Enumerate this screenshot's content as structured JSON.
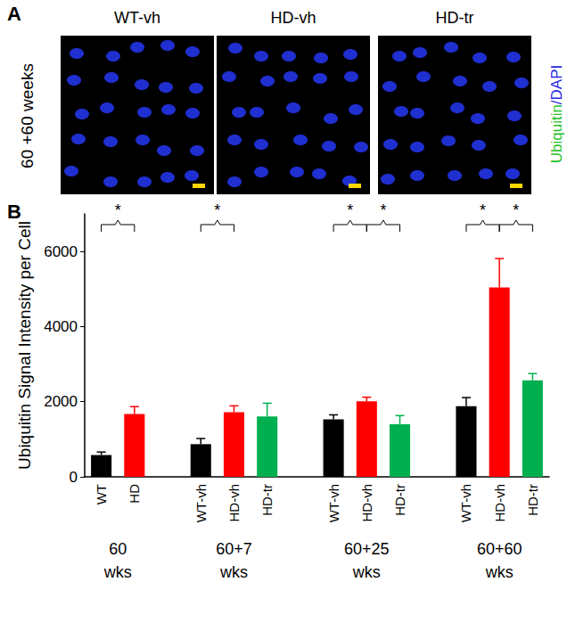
{
  "panel_a": {
    "label": "A",
    "row_label": "60 +60 weeks",
    "image_titles": [
      "WT-vh",
      "HD-vh",
      "HD-tr"
    ],
    "channel_labels": [
      {
        "text": "Ubiquitin",
        "color": "#1fbf1f"
      },
      {
        "text": "/DAPI",
        "color": "#2a2ae0"
      }
    ]
  },
  "panel_b_label": "B",
  "chart_data": {
    "type": "bar",
    "y_label": "Ubiquitin Signal Intensity per Cell",
    "categories": [
      "WT",
      "HD",
      null,
      "WT-vh",
      "HD-vh",
      "HD-tr",
      null,
      "WT-vh",
      "HD-vh",
      "HD-tr",
      null,
      "WT-vh",
      "HD-vh",
      "HD-tr"
    ],
    "values": [
      580,
      1670,
      null,
      870,
      1720,
      1610,
      null,
      1530,
      2010,
      1400,
      null,
      1880,
      5040,
      2570
    ],
    "errors": [
      80,
      200,
      null,
      150,
      170,
      350,
      null,
      120,
      110,
      230,
      null,
      230,
      770,
      180
    ],
    "colors": [
      "#000000",
      "#ff0000",
      null,
      "#000000",
      "#ff0000",
      "#00b050",
      null,
      "#000000",
      "#ff0000",
      "#00b050",
      null,
      "#000000",
      "#ff0000",
      "#00b050"
    ],
    "groups": [
      {
        "label": "60 wks",
        "from": 0,
        "to": 1
      },
      {
        "label": "60+7 wks",
        "from": 3,
        "to": 5
      },
      {
        "label": "60+25 wks",
        "from": 7,
        "to": 9
      },
      {
        "label": "60+60 wks",
        "from": 11,
        "to": 13
      }
    ],
    "annotations": [
      {
        "text": "*",
        "from": 0,
        "to": 1
      },
      {
        "text": "*",
        "from": 3,
        "to": 4
      },
      {
        "text": "*",
        "from": 7,
        "to": 8
      },
      {
        "text": "*",
        "from": 8,
        "to": 9
      },
      {
        "text": "*",
        "from": 11,
        "to": 12
      },
      {
        "text": "*",
        "from": 12,
        "to": 13
      }
    ],
    "ylim": [
      0,
      7000
    ],
    "yticks": [
      0,
      2000,
      4000,
      6000
    ],
    "grid": false
  }
}
